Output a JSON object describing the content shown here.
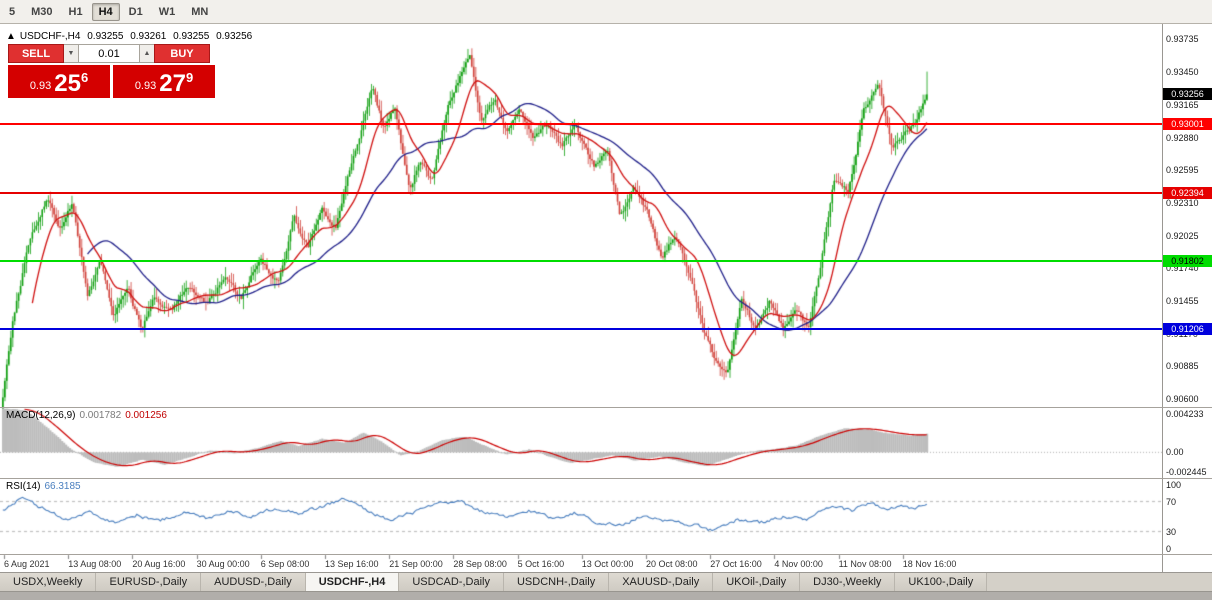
{
  "toolbar": {
    "buttons": [
      {
        "label": "5",
        "active": false
      },
      {
        "label": "M30",
        "active": false
      },
      {
        "label": "H1",
        "active": false
      },
      {
        "label": "H4",
        "active": true
      },
      {
        "label": "D1",
        "active": false
      },
      {
        "label": "W1",
        "active": false
      },
      {
        "label": "MN",
        "active": false
      }
    ]
  },
  "header": {
    "collapse": "▲",
    "title": "USDCHF-,H4",
    "o": "0.93255",
    "h": "0.93261",
    "l": "0.93255",
    "c": "0.93256"
  },
  "trade": {
    "sell": "SELL",
    "buy": "BUY",
    "lot": "0.01",
    "down_glyph": "▼",
    "up_glyph": "▲",
    "sell_small": "0.93",
    "sell_big": "25",
    "sell_sup": "6",
    "buy_small": "0.93",
    "buy_big": "27",
    "buy_sup": "9"
  },
  "price_axis": {
    "ticks": [
      "0.93735",
      "0.93450",
      "0.93165",
      "0.92880",
      "0.92595",
      "0.92310",
      "0.92025",
      "0.91740",
      "0.91455",
      "0.91170",
      "0.90885",
      "0.90600"
    ]
  },
  "hlines": [
    {
      "price": 0.93001,
      "label": "0.93001",
      "color": "#FF0000",
      "text": "#FFFFFF"
    },
    {
      "price": 0.92394,
      "label": "0.92394",
      "color": "#E60000",
      "text": "#FFFFFF"
    },
    {
      "price": 0.91802,
      "label": "0.91802",
      "color": "#00DD00",
      "text": "#000000"
    },
    {
      "price": 0.91206,
      "label": "0.91206",
      "color": "#0000DD",
      "text": "#FFFFFF"
    }
  ],
  "bid_label": {
    "label": "0.93256",
    "price": 0.93256,
    "bg": "#000000",
    "text": "#FFFFFF"
  },
  "macd_panel": {
    "title": "MACD(12,26,9)",
    "v1": "0.001782",
    "v2": "0.001256",
    "max": 0.004233,
    "min": -0.002445,
    "labels": [
      "0.004233",
      "0.00",
      "-0.002445"
    ]
  },
  "rsi_panel": {
    "title": "RSI(14)",
    "value": "66.3185",
    "labels": [
      "100",
      "70",
      "30",
      "0"
    ],
    "levels": [
      70,
      30
    ]
  },
  "tabs": {
    "items": [
      "USDX,Weekly",
      "EURUSD-,Daily",
      "AUDUSD-,Daily",
      "USDCHF-,H4",
      "USDCAD-,Daily",
      "USDCNH-,Daily",
      "XAUUSD-,Daily",
      "UKOil-,Daily",
      "DJ30-,Weekly",
      "UK100-,Daily"
    ],
    "active_index": 3
  },
  "chart_data": {
    "type": "candlestick",
    "symbol": "USDCHF-",
    "timeframe": "H4",
    "last_ohlc": {
      "open": 0.93255,
      "high": 0.93261,
      "low": 0.93255,
      "close": 0.93256
    },
    "bid": 0.93256,
    "ask": 0.93279,
    "price_range": {
      "min": 0.9053,
      "max": 0.9387
    },
    "candle_count_approx": 470,
    "horizontal_levels": [
      0.93001,
      0.92394,
      0.91802,
      0.91206
    ],
    "price_path_anchors": [
      [
        0.0,
        0.9063
      ],
      [
        0.01,
        0.9125
      ],
      [
        0.028,
        0.9195
      ],
      [
        0.048,
        0.9235
      ],
      [
        0.062,
        0.9208
      ],
      [
        0.075,
        0.9232
      ],
      [
        0.092,
        0.915
      ],
      [
        0.105,
        0.918
      ],
      [
        0.12,
        0.9132
      ],
      [
        0.135,
        0.9158
      ],
      [
        0.15,
        0.912
      ],
      [
        0.165,
        0.915
      ],
      [
        0.182,
        0.9136
      ],
      [
        0.2,
        0.916
      ],
      [
        0.22,
        0.9142
      ],
      [
        0.24,
        0.9165
      ],
      [
        0.258,
        0.9148
      ],
      [
        0.278,
        0.9182
      ],
      [
        0.298,
        0.9162
      ],
      [
        0.315,
        0.9218
      ],
      [
        0.33,
        0.9192
      ],
      [
        0.345,
        0.9226
      ],
      [
        0.36,
        0.921
      ],
      [
        0.375,
        0.9258
      ],
      [
        0.4,
        0.9332
      ],
      [
        0.412,
        0.9296
      ],
      [
        0.424,
        0.9314
      ],
      [
        0.44,
        0.9243
      ],
      [
        0.452,
        0.9268
      ],
      [
        0.464,
        0.925
      ],
      [
        0.482,
        0.9316
      ],
      [
        0.505,
        0.936
      ],
      [
        0.518,
        0.9302
      ],
      [
        0.532,
        0.9322
      ],
      [
        0.546,
        0.9292
      ],
      [
        0.56,
        0.9312
      ],
      [
        0.574,
        0.9288
      ],
      [
        0.59,
        0.9302
      ],
      [
        0.605,
        0.928
      ],
      [
        0.62,
        0.9298
      ],
      [
        0.64,
        0.9262
      ],
      [
        0.654,
        0.928
      ],
      [
        0.668,
        0.9218
      ],
      [
        0.683,
        0.9246
      ],
      [
        0.698,
        0.9222
      ],
      [
        0.713,
        0.9182
      ],
      [
        0.728,
        0.9204
      ],
      [
        0.743,
        0.9168
      ],
      [
        0.758,
        0.912
      ],
      [
        0.772,
        0.9092
      ],
      [
        0.785,
        0.9085
      ],
      [
        0.8,
        0.9148
      ],
      [
        0.815,
        0.912
      ],
      [
        0.83,
        0.9146
      ],
      [
        0.845,
        0.912
      ],
      [
        0.86,
        0.9138
      ],
      [
        0.872,
        0.9121
      ],
      [
        0.885,
        0.9175
      ],
      [
        0.9,
        0.9252
      ],
      [
        0.915,
        0.924
      ],
      [
        0.932,
        0.9312
      ],
      [
        0.948,
        0.9332
      ],
      [
        0.962,
        0.928
      ],
      [
        0.975,
        0.929
      ],
      [
        0.988,
        0.9302
      ],
      [
        1.0,
        0.9325
      ]
    ],
    "indicators": {
      "macd": {
        "params": "12,26,9",
        "current": 0.001782,
        "signal": 0.001256,
        "range": [
          -0.002445,
          0.004233
        ],
        "path_anchors": [
          [
            0.0,
            0.0042
          ],
          [
            0.025,
            0.004
          ],
          [
            0.05,
            0.0022
          ],
          [
            0.075,
            0.0002
          ],
          [
            0.1,
            -0.001
          ],
          [
            0.125,
            -0.0014
          ],
          [
            0.15,
            -0.0007
          ],
          [
            0.175,
            -0.0012
          ],
          [
            0.2,
            -0.0005
          ],
          [
            0.225,
            0.0002
          ],
          [
            0.25,
            0.0
          ],
          [
            0.275,
            0.0004
          ],
          [
            0.3,
            0.0011
          ],
          [
            0.32,
            0.0006
          ],
          [
            0.345,
            0.0013
          ],
          [
            0.37,
            0.0009
          ],
          [
            0.39,
            0.0019
          ],
          [
            0.41,
            0.001
          ],
          [
            0.43,
            -0.0003
          ],
          [
            0.45,
            0.0001
          ],
          [
            0.475,
            0.0012
          ],
          [
            0.5,
            0.0015
          ],
          [
            0.52,
            0.0007
          ],
          [
            0.545,
            -0.0002
          ],
          [
            0.57,
            0.0003
          ],
          [
            0.59,
            -0.0004
          ],
          [
            0.615,
            -0.001
          ],
          [
            0.64,
            -0.0006
          ],
          [
            0.66,
            -0.0003
          ],
          [
            0.685,
            -0.0008
          ],
          [
            0.71,
            -0.0004
          ],
          [
            0.735,
            -0.0009
          ],
          [
            0.76,
            -0.0013
          ],
          [
            0.785,
            -0.0006
          ],
          [
            0.81,
            0.0001
          ],
          [
            0.835,
            0.0003
          ],
          [
            0.86,
            0.0007
          ],
          [
            0.885,
            0.0016
          ],
          [
            0.91,
            0.0023
          ],
          [
            0.935,
            0.0022
          ],
          [
            0.96,
            0.0018
          ],
          [
            0.98,
            0.0016
          ],
          [
            1.0,
            0.00178
          ]
        ]
      },
      "rsi": {
        "period": 14,
        "current": 66.3185,
        "range": [
          0,
          100
        ],
        "levels": [
          70,
          30
        ],
        "path_anchors": [
          [
            0.0,
            58
          ],
          [
            0.02,
            74
          ],
          [
            0.045,
            60
          ],
          [
            0.07,
            46
          ],
          [
            0.095,
            56
          ],
          [
            0.12,
            42
          ],
          [
            0.145,
            52
          ],
          [
            0.17,
            44
          ],
          [
            0.195,
            56
          ],
          [
            0.22,
            48
          ],
          [
            0.245,
            58
          ],
          [
            0.27,
            50
          ],
          [
            0.295,
            62
          ],
          [
            0.32,
            55
          ],
          [
            0.345,
            63
          ],
          [
            0.37,
            74
          ],
          [
            0.395,
            58
          ],
          [
            0.42,
            44
          ],
          [
            0.445,
            56
          ],
          [
            0.47,
            66
          ],
          [
            0.495,
            70
          ],
          [
            0.52,
            56
          ],
          [
            0.545,
            48
          ],
          [
            0.57,
            58
          ],
          [
            0.595,
            48
          ],
          [
            0.62,
            55
          ],
          [
            0.645,
            42
          ],
          [
            0.67,
            38
          ],
          [
            0.695,
            52
          ],
          [
            0.72,
            44
          ],
          [
            0.745,
            40
          ],
          [
            0.77,
            30
          ],
          [
            0.795,
            46
          ],
          [
            0.82,
            42
          ],
          [
            0.845,
            50
          ],
          [
            0.87,
            46
          ],
          [
            0.895,
            62
          ],
          [
            0.92,
            58
          ],
          [
            0.94,
            70
          ],
          [
            0.955,
            58
          ],
          [
            0.97,
            63
          ],
          [
            0.985,
            60
          ],
          [
            1.0,
            66.3
          ]
        ]
      }
    },
    "x_axis_labels": [
      "6 Aug 2021",
      "13 Aug 08:00",
      "20 Aug 16:00",
      "30 Aug 00:00",
      "6 Sep 08:00",
      "13 Sep 16:00",
      "21 Sep 00:00",
      "28 Sep 08:00",
      "5 Oct 16:00",
      "13 Oct 00:00",
      "20 Oct 08:00",
      "27 Oct 16:00",
      "4 Nov 00:00",
      "11 Nov 08:00",
      "18 Nov 16:00"
    ],
    "colors": {
      "bull": "#12A012",
      "bear": "#D2463F",
      "ma_fast": "#D01010",
      "ma_slow": "#20208A",
      "macd_hist": "#BDBDBD",
      "macd_signal": "#CC0000",
      "rsi_line": "#4A7FBF"
    }
  }
}
